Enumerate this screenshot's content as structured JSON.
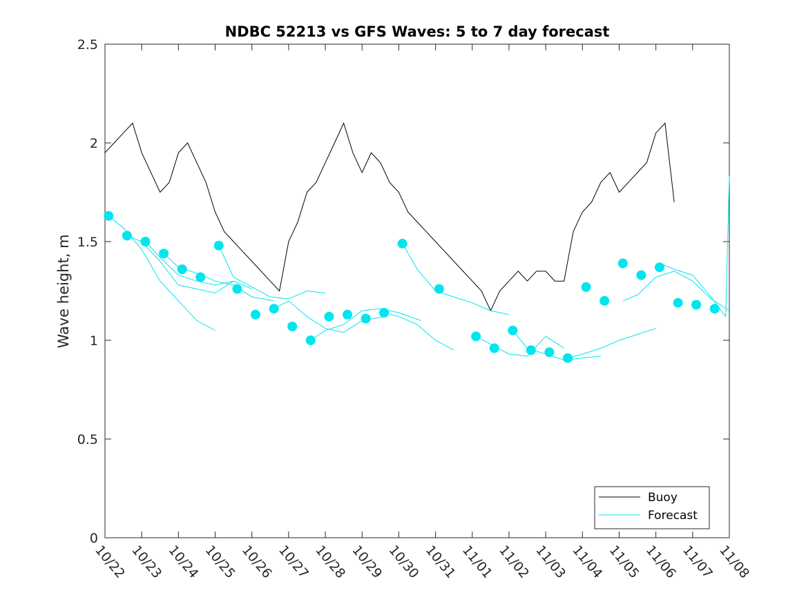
{
  "chart_data": {
    "type": "line",
    "title": "NDBC 52213 vs GFS Waves: 5 to 7 day forecast",
    "xlabel": "",
    "ylabel": "Wave height, m",
    "ylim": [
      0,
      2.5
    ],
    "yticks": [
      0,
      0.5,
      1,
      1.5,
      2,
      2.5
    ],
    "ytick_labels": [
      "0",
      "0.5",
      "1",
      "1.5",
      "2",
      "2.5"
    ],
    "xlim": [
      0,
      17
    ],
    "xticks": [
      0,
      1,
      2,
      3,
      4,
      5,
      6,
      7,
      8,
      9,
      10,
      11,
      12,
      13,
      14,
      15,
      16,
      17
    ],
    "xtick_labels": [
      "10/22",
      "10/23",
      "10/24",
      "10/25",
      "10/26",
      "10/27",
      "10/28",
      "10/29",
      "10/30",
      "10/31",
      "11/01",
      "11/02",
      "11/03",
      "11/04",
      "11/05",
      "11/06",
      "11/07",
      "11/08"
    ],
    "legend": {
      "position": "bottom-right",
      "entries": [
        "Buoy",
        "Forecast"
      ]
    },
    "colors": {
      "buoy": "#000000",
      "forecast": "#00e5ee",
      "axes": "#262626"
    },
    "buoy": {
      "name": "Buoy",
      "x": [
        0.0,
        0.25,
        0.5,
        0.75,
        1.0,
        1.25,
        1.5,
        1.75,
        2.0,
        2.25,
        2.5,
        2.75,
        3.0,
        3.25,
        3.5,
        3.75,
        4.0,
        4.25,
        4.5,
        4.75,
        5.0,
        5.25,
        5.5,
        5.75,
        6.0,
        6.25,
        6.5,
        6.75,
        7.0,
        7.25,
        7.5,
        7.75,
        8.0,
        8.25,
        8.5,
        8.75,
        9.0,
        9.25,
        9.5,
        9.75,
        10.0,
        10.25,
        10.5,
        10.75,
        11.0,
        11.25,
        11.5,
        11.75,
        12.0,
        12.25,
        12.5,
        12.75,
        13.0,
        13.25,
        13.5,
        13.75,
        14.0,
        14.25,
        14.5,
        14.75,
        15.0,
        15.25,
        15.5,
        15.75,
        16.0,
        16.25,
        16.5,
        16.75,
        17.0
      ],
      "y": [
        1.95,
        2.0,
        2.05,
        2.1,
        1.95,
        1.85,
        1.75,
        1.8,
        1.95,
        2.0,
        1.9,
        1.8,
        1.65,
        1.55,
        1.5,
        1.45,
        1.4,
        1.35,
        1.3,
        1.25,
        1.5,
        1.6,
        1.75,
        1.8,
        1.9,
        2.0,
        2.1,
        1.95,
        1.85,
        1.95,
        1.9,
        1.8,
        1.75,
        1.65,
        1.6,
        1.55,
        1.5,
        1.45,
        1.4,
        1.35,
        1.3,
        1.25,
        1.15,
        1.25,
        1.3,
        1.35,
        1.3,
        1.35,
        1.35,
        1.3,
        1.3,
        1.55,
        1.65,
        1.7,
        1.8,
        1.85,
        1.75,
        1.8,
        1.85,
        1.9,
        2.05,
        2.1,
        1.7,
        null,
        null,
        null,
        null,
        null,
        null
      ]
    },
    "forecast_points": {
      "name": "Forecast",
      "x": [
        0.1,
        0.6,
        1.1,
        1.6,
        2.1,
        2.6,
        3.1,
        3.6,
        4.1,
        4.6,
        5.1,
        5.6,
        6.1,
        6.6,
        7.1,
        7.6,
        8.1,
        9.1,
        10.1,
        10.6,
        11.1,
        11.6,
        12.1,
        12.6,
        13.1,
        13.6,
        14.1,
        14.6,
        15.1,
        15.6,
        16.1,
        16.6
      ],
      "y": [
        1.63,
        1.53,
        1.5,
        1.44,
        1.36,
        1.32,
        1.48,
        1.26,
        1.13,
        1.16,
        1.07,
        1.0,
        1.12,
        1.13,
        1.11,
        1.14,
        1.49,
        1.26,
        1.02,
        0.96,
        1.05,
        0.95,
        0.94,
        0.91,
        1.27,
        1.2,
        1.39,
        1.33,
        1.37,
        1.19,
        1.18,
        1.16
      ]
    },
    "forecast_runs": [
      {
        "x": [
          0.1,
          0.5,
          1.0,
          1.5,
          2.0,
          2.5,
          3.0
        ],
        "y": [
          1.63,
          1.57,
          1.46,
          1.3,
          1.2,
          1.1,
          1.05
        ]
      },
      {
        "x": [
          0.6,
          1.0,
          1.5,
          2.0,
          2.5,
          3.0,
          3.5
        ],
        "y": [
          1.53,
          1.5,
          1.4,
          1.28,
          1.26,
          1.24,
          1.3
        ]
      },
      {
        "x": [
          1.1,
          1.5,
          2.0,
          2.5,
          3.0,
          3.5,
          4.0
        ],
        "y": [
          1.5,
          1.42,
          1.33,
          1.3,
          1.28,
          1.3,
          1.26
        ]
      },
      {
        "x": [
          1.6,
          2.0,
          2.5,
          3.0,
          3.5,
          4.0,
          4.6
        ],
        "y": [
          1.44,
          1.37,
          1.34,
          1.3,
          1.28,
          1.22,
          1.2
        ]
      },
      {
        "x": [
          3.1,
          3.5,
          4.0,
          4.5,
          5.0,
          5.5,
          6.0
        ],
        "y": [
          1.48,
          1.32,
          1.27,
          1.22,
          1.21,
          1.25,
          1.24
        ]
      },
      {
        "x": [
          4.6,
          5.0,
          5.5,
          6.0,
          6.5,
          7.0,
          7.6
        ],
        "y": [
          1.16,
          1.2,
          1.12,
          1.06,
          1.04,
          1.1,
          1.12
        ]
      },
      {
        "x": [
          5.6,
          6.0,
          6.5,
          7.0,
          7.5,
          8.0,
          8.6
        ],
        "y": [
          1.0,
          1.05,
          1.08,
          1.15,
          1.16,
          1.14,
          1.1
        ]
      },
      {
        "x": [
          7.6,
          8.0,
          8.5,
          9.0,
          9.5
        ],
        "y": [
          1.14,
          1.12,
          1.08,
          1.0,
          0.95
        ]
      },
      {
        "x": [
          8.1,
          8.5,
          9.0,
          9.5,
          10.0,
          10.5,
          11.0
        ],
        "y": [
          1.49,
          1.36,
          1.25,
          1.22,
          1.19,
          1.15,
          1.13
        ]
      },
      {
        "x": [
          10.1,
          10.5,
          11.0,
          11.5,
          12.0,
          12.5
        ],
        "y": [
          1.02,
          0.98,
          0.93,
          0.92,
          1.02,
          0.96
        ]
      },
      {
        "x": [
          11.1,
          11.5,
          12.0,
          12.5,
          13.0,
          13.5
        ],
        "y": [
          1.05,
          0.96,
          0.93,
          0.9,
          0.91,
          0.92
        ]
      },
      {
        "x": [
          12.6,
          13.0,
          13.5,
          14.0,
          14.5,
          15.0
        ],
        "y": [
          0.91,
          0.93,
          0.96,
          1.0,
          1.03,
          1.06
        ]
      },
      {
        "x": [
          14.1,
          14.5,
          15.0,
          15.5,
          16.0,
          16.5,
          17.0
        ],
        "y": [
          1.2,
          1.23,
          1.32,
          1.35,
          1.3,
          1.21,
          1.15
        ]
      },
      {
        "x": [
          15.1,
          15.5,
          16.0,
          16.5,
          16.9,
          17.0
        ],
        "y": [
          1.39,
          1.36,
          1.33,
          1.22,
          1.12,
          1.83
        ]
      }
    ]
  }
}
